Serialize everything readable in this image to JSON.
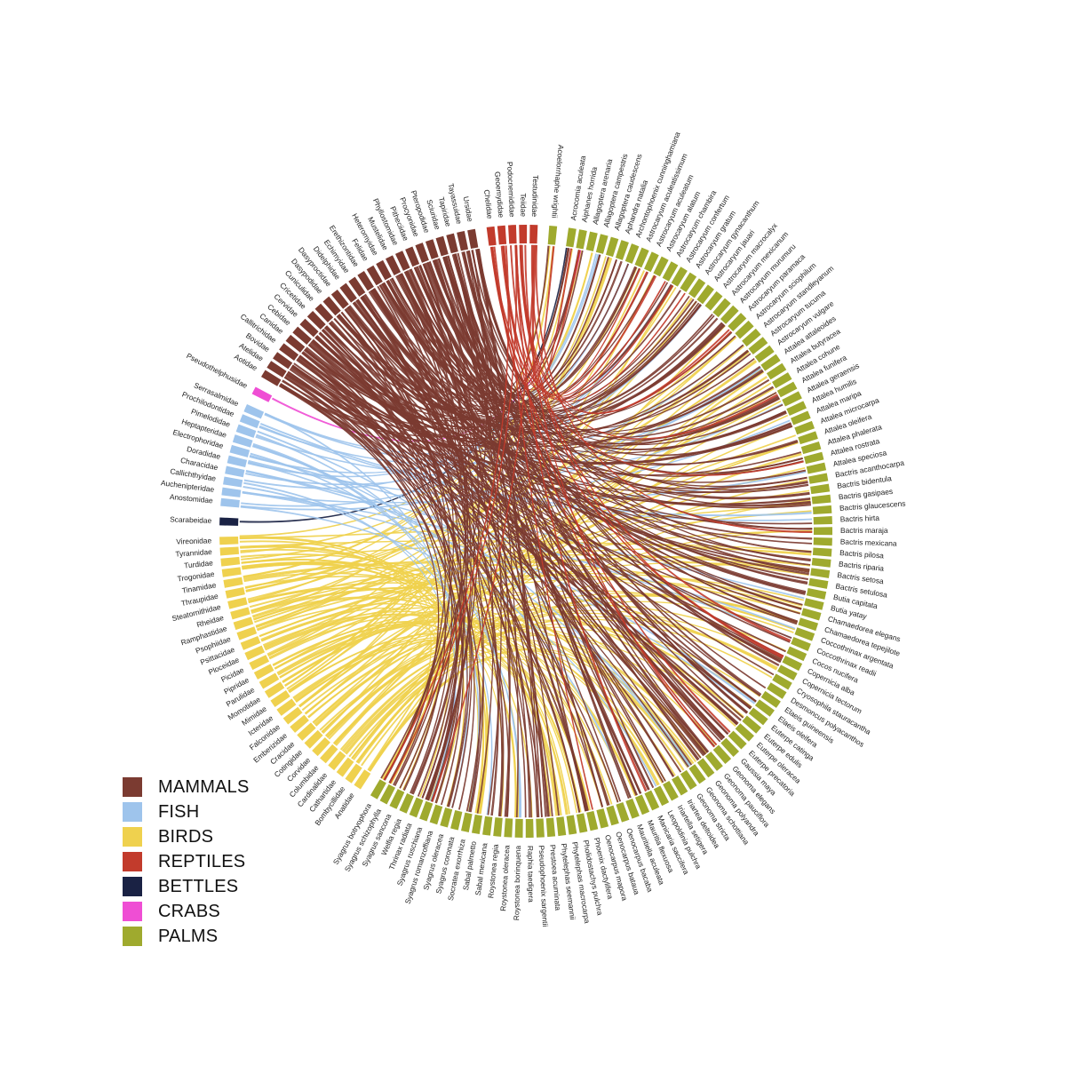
{
  "chart_data": {
    "type": "chord",
    "colors": {
      "MAMMALS": "#7b3b31",
      "FISH": "#9ec4ec",
      "BIRDS": "#efd14e",
      "REPTILES": "#c23b2c",
      "BETTLES": "#1a2244",
      "CRABS": "#ef4ed4",
      "PALMS": "#9faa2e"
    },
    "legend": [
      {
        "label": "MAMMALS",
        "group": "MAMMALS"
      },
      {
        "label": "FISH",
        "group": "FISH"
      },
      {
        "label": "BIRDS",
        "group": "BIRDS"
      },
      {
        "label": "REPTILES",
        "group": "REPTILES"
      },
      {
        "label": "BETTLES",
        "group": "BETTLES"
      },
      {
        "label": "CRABS",
        "group": "CRABS"
      },
      {
        "label": "PALMS",
        "group": "PALMS"
      }
    ],
    "groups": [
      {
        "name": "PALMS",
        "nodes": [
          "Acrocomia aculeata",
          "Aiphanes horrida",
          "Allagoptera arenaria",
          "Allagoptera campestris",
          "Allagoptera caudescens",
          "Aphandra natalia",
          "Archontophoenix cunninghamiana",
          "Astrocaryum aculeatissimum",
          "Astrocaryum aculeatum",
          "Astrocaryum alatum",
          "Astrocaryum chambira",
          "Astrocaryum confertum",
          "Astrocaryum gratum",
          "Astrocaryum gynacanthum",
          "Astrocaryum jauari",
          "Astrocaryum macrocalyx",
          "Astrocaryum mexicanum",
          "Astrocaryum murumuru",
          "Astrocaryum paramaca",
          "Astrocaryum sciophilum",
          "Astrocaryum standleyanum",
          "Astrocaryum tucuma",
          "Astrocaryum vulgare",
          "Attalea attaleoides",
          "Attalea butyracea",
          "Attalea cohune",
          "Attalea funifera",
          "Attalea geraensis",
          "Attalea humilis",
          "Attalea maripa",
          "Attalea microcarpa",
          "Attalea oleifera",
          "Attalea phalerata",
          "Attalea rostrata",
          "Attalea speciosa",
          "Bactris acanthocarpa",
          "Bactris bidentula",
          "Bactris gasipaes",
          "Bactris glaucescens",
          "Bactris hirta",
          "Bactris maraja",
          "Bactris mexicana",
          "Bactris pilosa",
          "Bactris riparia",
          "Bactris setosa",
          "Bactris setulosa",
          "Butia capitata",
          "Butia yatay",
          "Chamaedorea elegans",
          "Chamaedorea tepejilote",
          "Coccothrinax argentata",
          "Coccothrinax readii",
          "Cocos nucifera",
          "Copernicia alba",
          "Copernicia tectorum",
          "Cryosophila stauracantha",
          "Desmoncus polyacanthos",
          "Elaeis guineensis",
          "Elaeis oleifera",
          "Euterpe catinga",
          "Euterpe edulis",
          "Euterpe oleracea",
          "Euterpe precatoria",
          "Gaussia maya",
          "Geonoma elegans",
          "Geonoma pauciflora",
          "Geonoma polyandra",
          "Geonoma schottiana",
          "Geonoma stricta",
          "Iriartea deltoidea",
          "Iriartella setigera",
          "Leopoldinia pulchra",
          "Manicaria saccifera",
          "Mauritia flexuosa",
          "Mauritiella aculeata",
          "Oenocarpus bacaba",
          "Oenocarpus bataua",
          "Oenocarpus mapora",
          "Phoenix dactylifera",
          "Pholidostachys pulchra",
          "Phytelephas macrocarpa",
          "Phytelephas seemannii",
          "Prestoea acuminata",
          "Pseudophoenix sargentii",
          "Raphia taedigera",
          "Roystonea borinquena",
          "Roystonea oleracea",
          "Roystonea regia",
          "Sabal mexicana",
          "Sabal palmetto",
          "Socratea exorrhiza",
          "Syagrus coronata",
          "Syagrus oleracea",
          "Syagrus romanzoffiana",
          "Syagrus ruschiana",
          "Thrinax radiata",
          "Welfia regia",
          "Syagrus sancona",
          "Syagrus schizophylla",
          "Syagrus botryophora"
        ]
      },
      {
        "name": "BIRDS",
        "nodes": [
          "Anatidae",
          "Bombycillidae",
          "Cathartidae",
          "Cardinalidae",
          "Columbidae",
          "Corvidae",
          "Cotingidae",
          "Cracidae",
          "Emberizidae",
          "Falconidae",
          "Icteridae",
          "Mimidae",
          "Momotidae",
          "Parulidae",
          "Pipridae",
          "Picidae",
          "Ploceidae",
          "Psittacidae",
          "Psophiidae",
          "Ramphastidae",
          "Rheidae",
          "Steatornithidae",
          "Thraupidae",
          "Tinamidae",
          "Trogonidae",
          "Turdidae",
          "Tyrannidae",
          "Vireonidae"
        ]
      },
      {
        "name": "BETTLES",
        "nodes": [
          "Scarabeidae"
        ]
      },
      {
        "name": "FISH",
        "nodes": [
          "Anostomidae",
          "Auchenipteridae",
          "Callichthyidae",
          "Characidae",
          "Doradidae",
          "Electrophoridae",
          "Heptapteridae",
          "Pimelodidae",
          "Prochilodontidae",
          "Serrasalmidae"
        ]
      },
      {
        "name": "CRABS",
        "nodes": [
          "Pseudothelphusidae"
        ]
      },
      {
        "name": "MAMMALS",
        "nodes": [
          "Aotidae",
          "Atelidae",
          "Bovidae",
          "Callitrichidae",
          "Canidae",
          "Cebidae",
          "Cervidae",
          "Cricetidae",
          "Cuniculidae",
          "Dasypodidae",
          "Dasyproctidae",
          "Didelphidae",
          "Echimyidae",
          "Erethizontidae",
          "Felidae",
          "Heteromyidae",
          "Mustelidae",
          "Phyllostomidae",
          "Pitheciidae",
          "Procyonidae",
          "Pteropodidae",
          "Sciuridae",
          "Tapiridae",
          "Tayassuidae",
          "Ursidae"
        ]
      },
      {
        "name": "REPTILES",
        "nodes": [
          "Chelidae",
          "Geoemydidae",
          "Podocnemididae",
          "Teiidae",
          "Testudinidae"
        ]
      },
      {
        "name": "PALMS",
        "nodes": [
          "Acoelorrhaphe wrightii"
        ]
      }
    ]
  }
}
